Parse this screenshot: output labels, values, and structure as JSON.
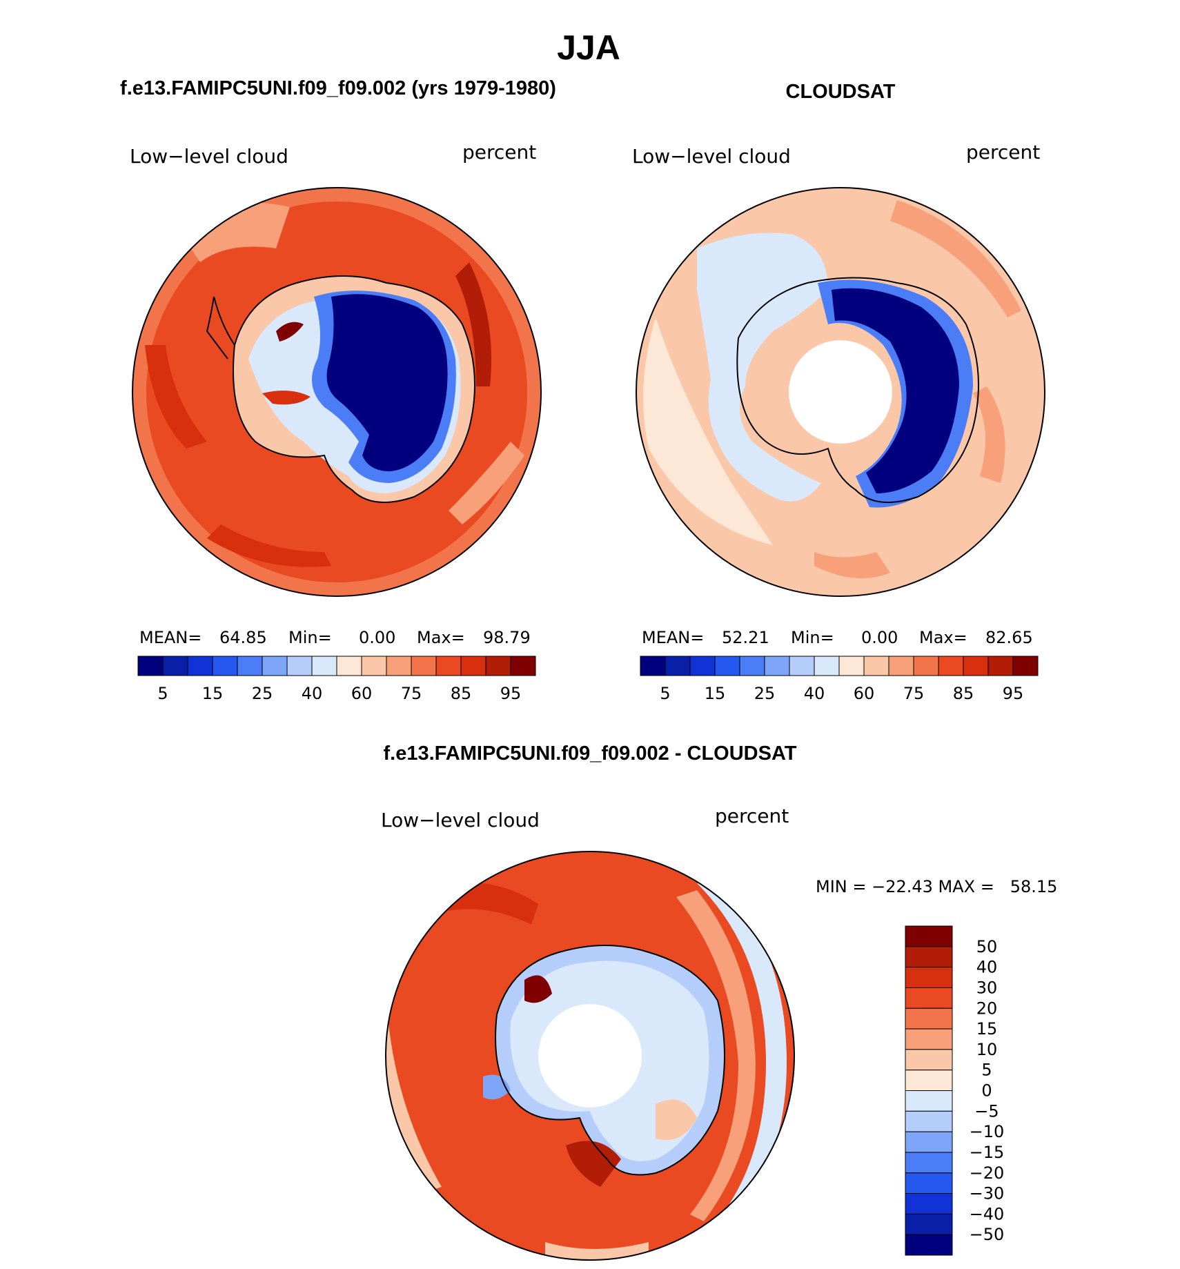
{
  "page_title": "JJA",
  "chart_data": [
    {
      "type": "heatmap",
      "title": "f.e13.FAMIPC5UNI.f09_f09.002 (yrs 1979-1980)",
      "variable": "Low−level cloud",
      "units": "percent",
      "projection": "south polar stereographic",
      "mean_label": "MEAN=",
      "mean": "64.85",
      "min_label": "Min=",
      "min": "0.00",
      "max_label": "Max=",
      "max": "98.79",
      "colorbar": {
        "orientation": "horizontal",
        "levels": [
          5,
          10,
          15,
          20,
          25,
          30,
          40,
          50,
          60,
          70,
          75,
          80,
          85,
          90,
          95
        ],
        "tick_labels": [
          "5",
          "15",
          "25",
          "40",
          "60",
          "75",
          "85",
          "95"
        ],
        "colors": [
          "#00007f",
          "#0a1fa8",
          "#1133d6",
          "#2458ee",
          "#4a7df6",
          "#7ea6f8",
          "#b4cdfa",
          "#d9e8fb",
          "#fde8d8",
          "#fbc7a9",
          "#f7a07a",
          "#f2744a",
          "#ea4a22",
          "#d8300f",
          "#b21d08",
          "#7f0000"
        ]
      }
    },
    {
      "type": "heatmap",
      "title": "CLOUDSAT",
      "variable": "Low−level cloud",
      "units": "percent",
      "projection": "south polar stereographic",
      "mean_label": "MEAN=",
      "mean": "52.21",
      "min_label": "Min=",
      "min": "0.00",
      "max_label": "Max=",
      "max": "82.65",
      "colorbar": {
        "orientation": "horizontal",
        "levels": [
          5,
          10,
          15,
          20,
          25,
          30,
          40,
          50,
          60,
          70,
          75,
          80,
          85,
          90,
          95
        ],
        "tick_labels": [
          "5",
          "15",
          "25",
          "40",
          "60",
          "75",
          "85",
          "95"
        ],
        "colors": [
          "#00007f",
          "#0a1fa8",
          "#1133d6",
          "#2458ee",
          "#4a7df6",
          "#7ea6f8",
          "#b4cdfa",
          "#d9e8fb",
          "#fde8d8",
          "#fbc7a9",
          "#f7a07a",
          "#f2744a",
          "#ea4a22",
          "#d8300f",
          "#b21d08",
          "#7f0000"
        ]
      }
    },
    {
      "type": "heatmap",
      "title": "f.e13.FAMIPC5UNI.f09_f09.002 - CLOUDSAT",
      "variable": "Low−level cloud",
      "units": "percent",
      "projection": "south polar stereographic",
      "minmax_label": "MIN = −22.43 MAX =   58.15",
      "min": "-22.43",
      "max": "58.15",
      "colorbar": {
        "orientation": "vertical",
        "tick_labels": [
          "50",
          "40",
          "30",
          "20",
          "15",
          "10",
          "5",
          "0",
          "−5",
          "−10",
          "−15",
          "−20",
          "−30",
          "−40",
          "−50"
        ],
        "colors": [
          "#7f0000",
          "#b21d08",
          "#d8300f",
          "#ea4a22",
          "#f2744a",
          "#f7a07a",
          "#fbc7a9",
          "#fde8d8",
          "#d9e8fb",
          "#b4cdfa",
          "#7ea6f8",
          "#4a7df6",
          "#2458ee",
          "#1133d6",
          "#0a1fa8",
          "#00007f"
        ]
      }
    }
  ]
}
